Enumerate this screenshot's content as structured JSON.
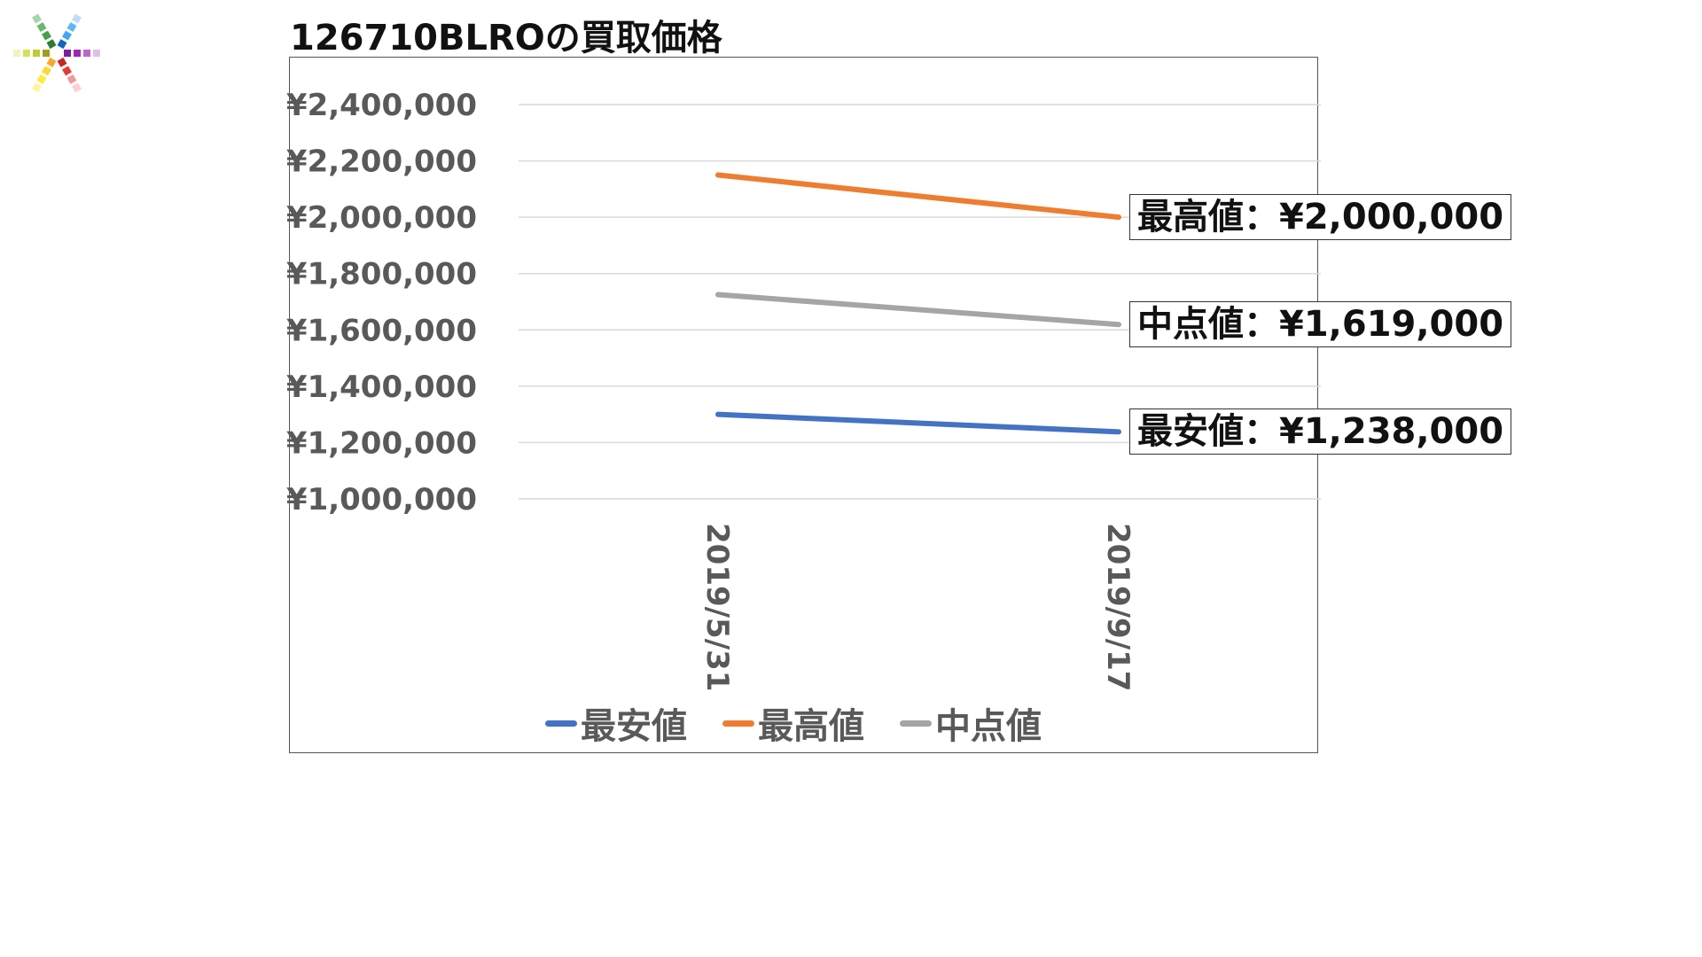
{
  "page": {
    "title": "126710BLROの買取価格",
    "logo_icon": "color-asterisk-logo"
  },
  "annotations": [
    {
      "name": "max-annotation",
      "text": "最高値：¥2,000,000",
      "series": "最高値"
    },
    {
      "name": "mid-annotation",
      "text": "中点値：¥1,619,000",
      "series": "中点値"
    },
    {
      "name": "min-annotation",
      "text": "最安値：¥1,238,000",
      "series": "最安値"
    }
  ],
  "chart_data": {
    "type": "line",
    "title": "",
    "xlabel": "",
    "ylabel": "",
    "x": [
      "2019/5/31",
      "2019/9/17"
    ],
    "ylim": [
      1000000,
      2400000
    ],
    "yticks": [
      1000000,
      1200000,
      1400000,
      1600000,
      1800000,
      2000000,
      2200000,
      2400000
    ],
    "ytick_labels": [
      "¥1,000,000",
      "¥1,200,000",
      "¥1,400,000",
      "¥1,600,000",
      "¥1,800,000",
      "¥2,000,000",
      "¥2,200,000",
      "¥2,400,000"
    ],
    "grid": true,
    "legend_position": "bottom",
    "series": [
      {
        "name": "最安値",
        "color": "#4472C4",
        "values": [
          1300000,
          1238000
        ]
      },
      {
        "name": "最高値",
        "color": "#ED7D31",
        "values": [
          2150000,
          2000000
        ]
      },
      {
        "name": "中点値",
        "color": "#A5A5A5",
        "values": [
          1725000,
          1619000
        ]
      }
    ]
  }
}
